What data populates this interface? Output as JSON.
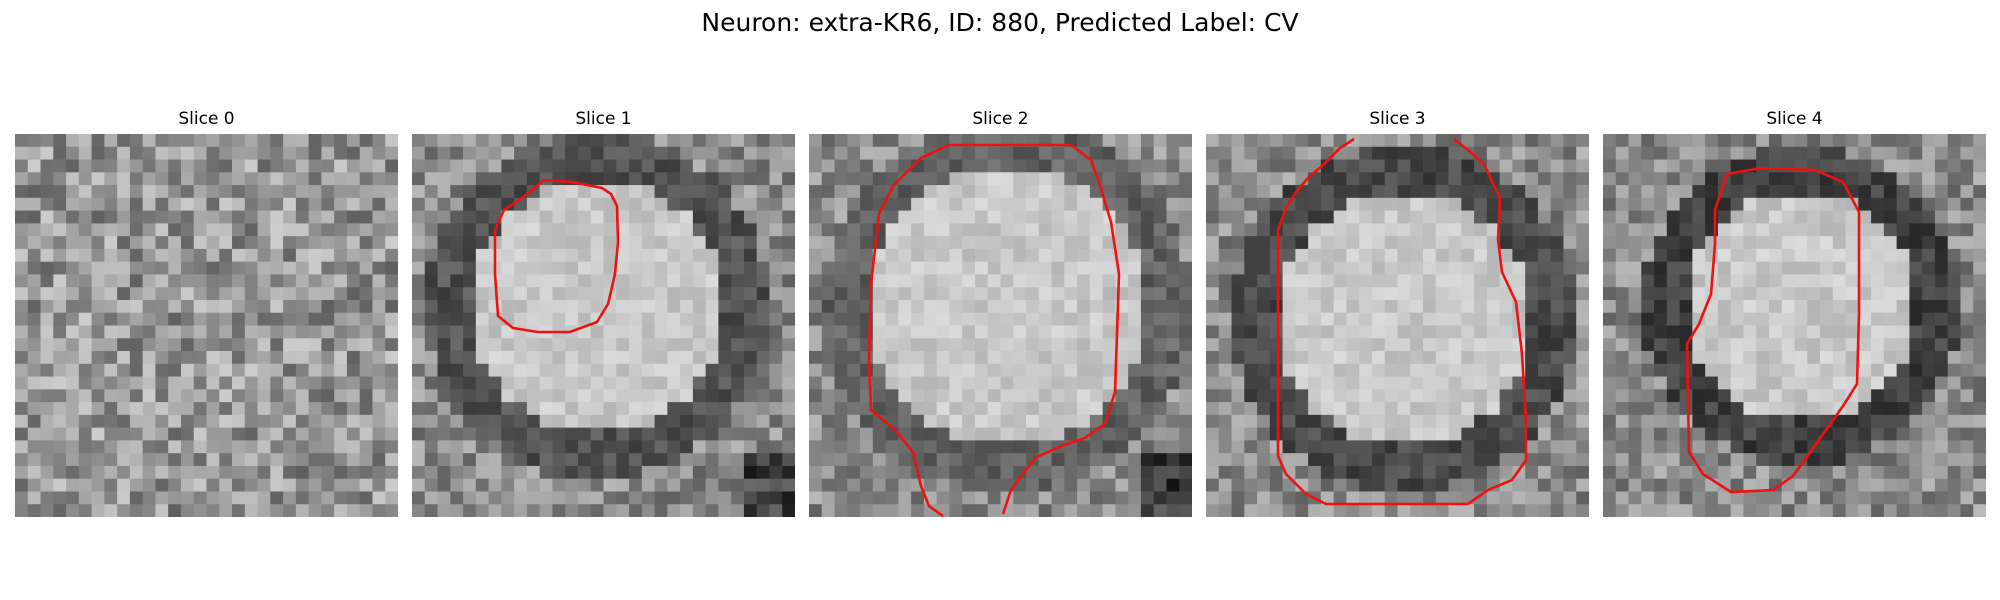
{
  "figure": {
    "title": "Neuron: extra-KR6, ID: 880, Predicted Label: CV"
  },
  "contour_color": "#ee1111",
  "grid_size": 30,
  "panels": [
    {
      "title": "Slice 0",
      "seed": 11,
      "blob": 0.0,
      "ring": 0.0,
      "cx": 15,
      "cy": 15,
      "r": 9,
      "dark_corner": 0
    },
    {
      "title": "Slice 1",
      "seed": 23,
      "blob": 1.0,
      "ring": 0.8,
      "cx": 14,
      "cy": 13,
      "r": 10,
      "dark_corner": 1
    },
    {
      "title": "Slice 2",
      "seed": 37,
      "blob": 1.0,
      "ring": 0.6,
      "cx": 15,
      "cy": 13,
      "r": 11,
      "dark_corner": 1
    },
    {
      "title": "Slice 3",
      "seed": 51,
      "blob": 1.0,
      "ring": 0.9,
      "cx": 15,
      "cy": 14,
      "r": 10,
      "dark_corner": 0
    },
    {
      "title": "Slice 4",
      "seed": 67,
      "blob": 0.8,
      "ring": 1.0,
      "cx": 15,
      "cy": 13,
      "r": 9,
      "dark_corner": 0
    }
  ]
}
